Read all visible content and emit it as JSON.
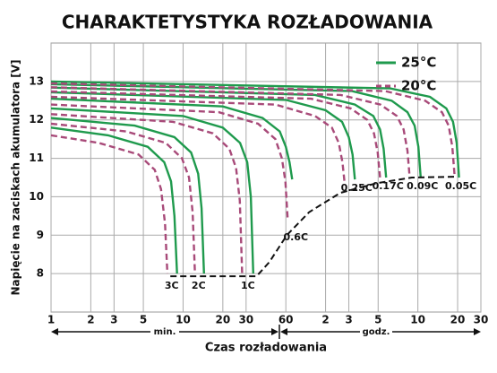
{
  "chart_data": {
    "type": "line",
    "title": "CHARAKTETYSTYKA ROZŁADOWANIA",
    "x_label": "Czas rozładowania",
    "y_label": "Napięcie na zaciskach akumulatora [V]",
    "x_scale": "log",
    "grid": true,
    "legend": "top-right",
    "annotations": [
      "min.",
      "godz."
    ],
    "xlim": [
      1,
      1800
    ],
    "ylim": [
      7,
      14
    ],
    "xticks": [
      1,
      2,
      3,
      5,
      10,
      20,
      30,
      60,
      {
        "value": 120,
        "label": "2"
      },
      {
        "value": 180,
        "label": "3"
      },
      {
        "value": 300,
        "label": "5"
      },
      {
        "value": 600,
        "label": "10"
      },
      {
        "value": 1200,
        "label": "20"
      },
      {
        "value": 1800,
        "label": "30"
      }
    ],
    "yticks": [
      8,
      9,
      10,
      11,
      12,
      13
    ],
    "rates": [
      "3C",
      "2C",
      "1C",
      "0.6C",
      "0.25C",
      "0.17C",
      "0.09C",
      "0.05C"
    ],
    "series": [
      {
        "name": "25°C",
        "color": "#1f9a4d",
        "dashed": false,
        "curves": [
          {
            "x": [
              1,
              2.7,
              5.4,
              7.2,
              8.1,
              8.6,
              9.0
            ],
            "values": [
              11.8,
              11.6,
              11.3,
              10.9,
              10.4,
              9.5,
              8.0
            ]
          },
          {
            "x": [
              1,
              4.3,
              8.6,
              11.5,
              13,
              13.8,
              14.4
            ],
            "values": [
              12.05,
              11.85,
              11.55,
              11.15,
              10.6,
              9.7,
              8.0
            ]
          },
          {
            "x": [
              1,
              10,
              20,
              27,
              30.6,
              32.6,
              34
            ],
            "values": [
              12.3,
              12.1,
              11.8,
              11.4,
              10.9,
              10.0,
              8.0
            ]
          },
          {
            "x": [
              1,
              20,
              40,
              54,
              60,
              64,
              67
            ],
            "values": [
              12.55,
              12.35,
              12.05,
              11.7,
              11.3,
              10.9,
              10.45
            ]
          },
          {
            "x": [
              1,
              60,
              120,
              160,
              180,
              192,
              200
            ],
            "values": [
              12.72,
              12.52,
              12.25,
              11.95,
              11.55,
              11.1,
              10.45
            ]
          },
          {
            "x": [
              1,
              100,
              200,
              276,
              310,
              330,
              345
            ],
            "values": [
              12.84,
              12.65,
              12.4,
              12.1,
              11.75,
              11.25,
              10.5
            ]
          },
          {
            "x": [
              1,
              190,
              380,
              500,
              567,
              605,
              630
            ],
            "values": [
              12.93,
              12.75,
              12.5,
              12.2,
              11.85,
              11.3,
              10.5
            ]
          },
          {
            "x": [
              1,
              370,
              740,
              985,
              1107,
              1180,
              1230
            ],
            "values": [
              13.0,
              12.82,
              12.6,
              12.3,
              11.95,
              11.4,
              10.5
            ]
          }
        ]
      },
      {
        "name": "20°C",
        "color": "#a84a79",
        "dashed": true,
        "curves": [
          {
            "x": [
              1,
              2.3,
              4.6,
              6.1,
              6.8,
              7.3,
              7.6
            ],
            "values": [
              11.6,
              11.4,
              11.1,
              10.7,
              10.2,
              9.3,
              8.0
            ]
          },
          {
            "x": [
              1,
              3.7,
              7.4,
              9.8,
              11.1,
              11.8,
              12.3
            ],
            "values": [
              11.9,
              11.7,
              11.4,
              11.0,
              10.5,
              9.6,
              8.0
            ]
          },
          {
            "x": [
              1,
              8.4,
              16.8,
              22.4,
              25.2,
              26.9,
              28
            ],
            "values": [
              12.15,
              11.95,
              11.65,
              11.25,
              10.75,
              9.9,
              8.0
            ]
          },
          {
            "x": [
              1,
              18.6,
              37,
              50,
              56,
              59.5,
              62
            ],
            "values": [
              12.4,
              12.2,
              11.9,
              11.5,
              11.0,
              10.4,
              9.4
            ]
          },
          {
            "x": [
              1,
              50,
              100,
              134,
              151,
              161,
              168
            ],
            "values": [
              12.6,
              12.4,
              12.1,
              11.8,
              11.4,
              10.9,
              10.3
            ]
          },
          {
            "x": [
              1,
              93,
              186,
              248,
              279,
              298,
              310
            ],
            "values": [
              12.74,
              12.55,
              12.3,
              12.0,
              11.65,
              11.15,
              10.5
            ]
          },
          {
            "x": [
              1,
              156,
              312,
              416,
              468,
              500,
              520
            ],
            "values": [
              12.85,
              12.65,
              12.4,
              12.1,
              11.75,
              11.2,
              10.5
            ]
          },
          {
            "x": [
              1,
              340,
              680,
              912,
              1026,
              1094,
              1140
            ],
            "values": [
              12.95,
              12.75,
              12.5,
              12.2,
              11.85,
              11.3,
              10.5
            ]
          }
        ]
      }
    ],
    "cutoff": {
      "color": "#111111",
      "x": [
        8,
        36,
        45,
        61,
        90,
        155,
        290,
        540,
        1170
      ],
      "values": [
        7.93,
        7.93,
        8.3,
        9.0,
        9.6,
        10.1,
        10.35,
        10.5,
        10.52
      ]
    }
  }
}
